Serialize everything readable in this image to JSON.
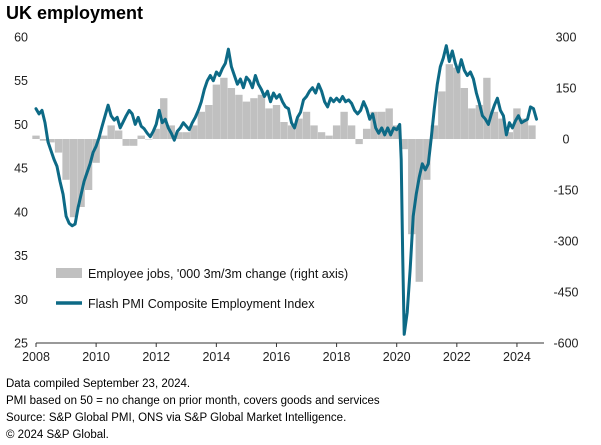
{
  "title": "UK employment",
  "chart_data": {
    "type": "bar+line",
    "left_axis": {
      "min": 25,
      "max": 60,
      "ticks": [
        25,
        30,
        35,
        40,
        45,
        50,
        55,
        60
      ]
    },
    "right_axis": {
      "min": -600,
      "max": 300,
      "ticks": [
        -600,
        -450,
        -300,
        -150,
        0,
        150,
        300
      ]
    },
    "x_axis": {
      "min": 2008.0,
      "max": 2024.9,
      "ticks": [
        2008,
        2010,
        2012,
        2014,
        2016,
        2018,
        2020,
        2022,
        2024
      ]
    },
    "bar_series": {
      "name": "Employee jobs, '000 3m/3m change (right axis)",
      "color": "#c0c0c0",
      "axis": "right",
      "points": [
        [
          2008.0,
          10
        ],
        [
          2008.25,
          -5
        ],
        [
          2008.5,
          -10
        ],
        [
          2008.75,
          -40
        ],
        [
          2009.0,
          -120
        ],
        [
          2009.25,
          -230
        ],
        [
          2009.5,
          -200
        ],
        [
          2009.75,
          -150
        ],
        [
          2010.0,
          -70
        ],
        [
          2010.25,
          10
        ],
        [
          2010.5,
          40
        ],
        [
          2010.75,
          25
        ],
        [
          2011.0,
          -20
        ],
        [
          2011.25,
          -20
        ],
        [
          2011.5,
          10
        ],
        [
          2011.75,
          0
        ],
        [
          2012.0,
          30
        ],
        [
          2012.25,
          120
        ],
        [
          2012.5,
          40
        ],
        [
          2012.75,
          20
        ],
        [
          2013.0,
          20
        ],
        [
          2013.25,
          40
        ],
        [
          2013.5,
          80
        ],
        [
          2013.75,
          100
        ],
        [
          2014.0,
          160
        ],
        [
          2014.25,
          180
        ],
        [
          2014.5,
          150
        ],
        [
          2014.75,
          130
        ],
        [
          2015.0,
          110
        ],
        [
          2015.25,
          120
        ],
        [
          2015.5,
          130
        ],
        [
          2015.75,
          90
        ],
        [
          2016.0,
          100
        ],
        [
          2016.25,
          50
        ],
        [
          2016.5,
          40
        ],
        [
          2016.75,
          60
        ],
        [
          2017.0,
          80
        ],
        [
          2017.25,
          40
        ],
        [
          2017.5,
          20
        ],
        [
          2017.75,
          10
        ],
        [
          2018.0,
          40
        ],
        [
          2018.25,
          80
        ],
        [
          2018.5,
          40
        ],
        [
          2018.75,
          -15
        ],
        [
          2019.0,
          30
        ],
        [
          2019.25,
          80
        ],
        [
          2019.5,
          80
        ],
        [
          2019.75,
          90
        ],
        [
          2020.0,
          40
        ],
        [
          2020.25,
          -30
        ],
        [
          2020.5,
          -280
        ],
        [
          2020.75,
          -420
        ],
        [
          2021.0,
          -120
        ],
        [
          2021.25,
          40
        ],
        [
          2021.5,
          140
        ],
        [
          2021.75,
          220
        ],
        [
          2022.0,
          210
        ],
        [
          2022.25,
          150
        ],
        [
          2022.5,
          90
        ],
        [
          2022.75,
          100
        ],
        [
          2023.0,
          180
        ],
        [
          2023.25,
          80
        ],
        [
          2023.5,
          60
        ],
        [
          2023.75,
          20
        ],
        [
          2024.0,
          90
        ],
        [
          2024.25,
          60
        ],
        [
          2024.5,
          40
        ]
      ]
    },
    "line_series": {
      "name": "Flash PMI Composite Employment Index",
      "color": "#0d6a86",
      "axis": "left",
      "points": [
        [
          2008.0,
          51.8
        ],
        [
          2008.1,
          51.2
        ],
        [
          2008.2,
          51.6
        ],
        [
          2008.3,
          50.2
        ],
        [
          2008.4,
          48.0
        ],
        [
          2008.5,
          47.0
        ],
        [
          2008.6,
          46.0
        ],
        [
          2008.7,
          45.2
        ],
        [
          2008.8,
          43.5
        ],
        [
          2008.9,
          42.0
        ],
        [
          2009.0,
          39.5
        ],
        [
          2009.1,
          38.7
        ],
        [
          2009.2,
          38.4
        ],
        [
          2009.3,
          38.6
        ],
        [
          2009.4,
          40.5
        ],
        [
          2009.5,
          42.0
        ],
        [
          2009.6,
          43.5
        ],
        [
          2009.7,
          44.5
        ],
        [
          2009.8,
          45.5
        ],
        [
          2009.9,
          46.8
        ],
        [
          2010.0,
          47.5
        ],
        [
          2010.1,
          48.5
        ],
        [
          2010.2,
          49.8
        ],
        [
          2010.3,
          51.0
        ],
        [
          2010.4,
          52.2
        ],
        [
          2010.5,
          51.0
        ],
        [
          2010.6,
          50.5
        ],
        [
          2010.7,
          50.8
        ],
        [
          2010.8,
          49.6
        ],
        [
          2010.9,
          50.3
        ],
        [
          2011.0,
          51.0
        ],
        [
          2011.1,
          51.6
        ],
        [
          2011.2,
          51.2
        ],
        [
          2011.3,
          50.0
        ],
        [
          2011.4,
          50.8
        ],
        [
          2011.5,
          49.8
        ],
        [
          2011.6,
          49.5
        ],
        [
          2011.7,
          49.0
        ],
        [
          2011.8,
          48.6
        ],
        [
          2011.9,
          49.2
        ],
        [
          2012.0,
          50.0
        ],
        [
          2012.1,
          51.6
        ],
        [
          2012.2,
          50.2
        ],
        [
          2012.3,
          50.6
        ],
        [
          2012.4,
          49.6
        ],
        [
          2012.5,
          49.0
        ],
        [
          2012.6,
          48.2
        ],
        [
          2012.7,
          49.2
        ],
        [
          2012.8,
          49.6
        ],
        [
          2012.9,
          50.2
        ],
        [
          2013.0,
          49.8
        ],
        [
          2013.1,
          49.4
        ],
        [
          2013.2,
          50.2
        ],
        [
          2013.3,
          50.8
        ],
        [
          2013.4,
          51.6
        ],
        [
          2013.5,
          52.6
        ],
        [
          2013.6,
          54.0
        ],
        [
          2013.7,
          55.0
        ],
        [
          2013.8,
          55.6
        ],
        [
          2013.9,
          55.0
        ],
        [
          2014.0,
          56.0
        ],
        [
          2014.1,
          55.6
        ],
        [
          2014.2,
          56.4
        ],
        [
          2014.3,
          57.0
        ],
        [
          2014.4,
          58.6
        ],
        [
          2014.5,
          56.6
        ],
        [
          2014.6,
          55.6
        ],
        [
          2014.7,
          54.6
        ],
        [
          2014.8,
          55.2
        ],
        [
          2014.9,
          54.2
        ],
        [
          2015.0,
          55.4
        ],
        [
          2015.1,
          55.0
        ],
        [
          2015.2,
          54.2
        ],
        [
          2015.3,
          55.6
        ],
        [
          2015.4,
          54.6
        ],
        [
          2015.5,
          54.0
        ],
        [
          2015.6,
          53.2
        ],
        [
          2015.7,
          53.8
        ],
        [
          2015.8,
          52.6
        ],
        [
          2015.9,
          53.6
        ],
        [
          2016.0,
          53.0
        ],
        [
          2016.1,
          53.4
        ],
        [
          2016.2,
          52.6
        ],
        [
          2016.3,
          52.0
        ],
        [
          2016.4,
          51.8
        ],
        [
          2016.5,
          50.2
        ],
        [
          2016.6,
          49.6
        ],
        [
          2016.7,
          50.8
        ],
        [
          2016.8,
          51.4
        ],
        [
          2016.9,
          52.8
        ],
        [
          2017.0,
          53.2
        ],
        [
          2017.1,
          53.8
        ],
        [
          2017.2,
          54.2
        ],
        [
          2017.3,
          53.6
        ],
        [
          2017.4,
          54.6
        ],
        [
          2017.5,
          53.8
        ],
        [
          2017.6,
          52.6
        ],
        [
          2017.7,
          52.0
        ],
        [
          2017.8,
          53.0
        ],
        [
          2017.9,
          52.6
        ],
        [
          2018.0,
          53.0
        ],
        [
          2018.1,
          52.6
        ],
        [
          2018.2,
          53.2
        ],
        [
          2018.3,
          52.6
        ],
        [
          2018.4,
          52.8
        ],
        [
          2018.5,
          52.4
        ],
        [
          2018.6,
          51.6
        ],
        [
          2018.7,
          51.2
        ],
        [
          2018.8,
          51.6
        ],
        [
          2018.9,
          52.6
        ],
        [
          2019.0,
          51.8
        ],
        [
          2019.1,
          50.6
        ],
        [
          2019.2,
          51.2
        ],
        [
          2019.3,
          49.6
        ],
        [
          2019.4,
          49.0
        ],
        [
          2019.5,
          49.6
        ],
        [
          2019.6,
          48.8
        ],
        [
          2019.7,
          49.6
        ],
        [
          2019.8,
          48.8
        ],
        [
          2019.9,
          49.6
        ],
        [
          2020.0,
          49.4
        ],
        [
          2020.1,
          50.0
        ],
        [
          2020.15,
          46.0
        ],
        [
          2020.2,
          35.0
        ],
        [
          2020.25,
          26.0
        ],
        [
          2020.35,
          28.5
        ],
        [
          2020.45,
          33.5
        ],
        [
          2020.55,
          39.5
        ],
        [
          2020.65,
          42.0
        ],
        [
          2020.75,
          44.0
        ],
        [
          2020.85,
          45.5
        ],
        [
          2020.95,
          44.8
        ],
        [
          2021.05,
          45.5
        ],
        [
          2021.15,
          48.5
        ],
        [
          2021.25,
          51.8
        ],
        [
          2021.35,
          54.6
        ],
        [
          2021.45,
          56.6
        ],
        [
          2021.55,
          57.6
        ],
        [
          2021.65,
          59.0
        ],
        [
          2021.75,
          57.2
        ],
        [
          2021.85,
          58.4
        ],
        [
          2021.95,
          57.0
        ],
        [
          2022.05,
          56.0
        ],
        [
          2022.15,
          57.4
        ],
        [
          2022.25,
          56.2
        ],
        [
          2022.35,
          55.6
        ],
        [
          2022.45,
          56.0
        ],
        [
          2022.55,
          55.2
        ],
        [
          2022.65,
          53.6
        ],
        [
          2022.75,
          52.4
        ],
        [
          2022.85,
          51.0
        ],
        [
          2022.95,
          50.6
        ],
        [
          2023.05,
          50.0
        ],
        [
          2023.15,
          51.2
        ],
        [
          2023.25,
          52.2
        ],
        [
          2023.35,
          53.0
        ],
        [
          2023.45,
          51.6
        ],
        [
          2023.55,
          51.0
        ],
        [
          2023.65,
          48.8
        ],
        [
          2023.75,
          50.2
        ],
        [
          2023.85,
          49.6
        ],
        [
          2023.95,
          50.4
        ],
        [
          2024.05,
          51.0
        ],
        [
          2024.15,
          50.2
        ],
        [
          2024.25,
          50.4
        ],
        [
          2024.35,
          50.6
        ],
        [
          2024.45,
          52.0
        ],
        [
          2024.55,
          51.8
        ],
        [
          2024.65,
          50.6
        ]
      ]
    },
    "grid": false,
    "legend_placement": "bottom-left"
  },
  "notes": [
    "Data compiled September 23, 2024.",
    "PMI based on 50 = no change on prior month, covers goods and services",
    "Source: S&P Global PMI, ONS via S&P Global Market Intelligence.",
    "© 2024 S&P Global."
  ]
}
